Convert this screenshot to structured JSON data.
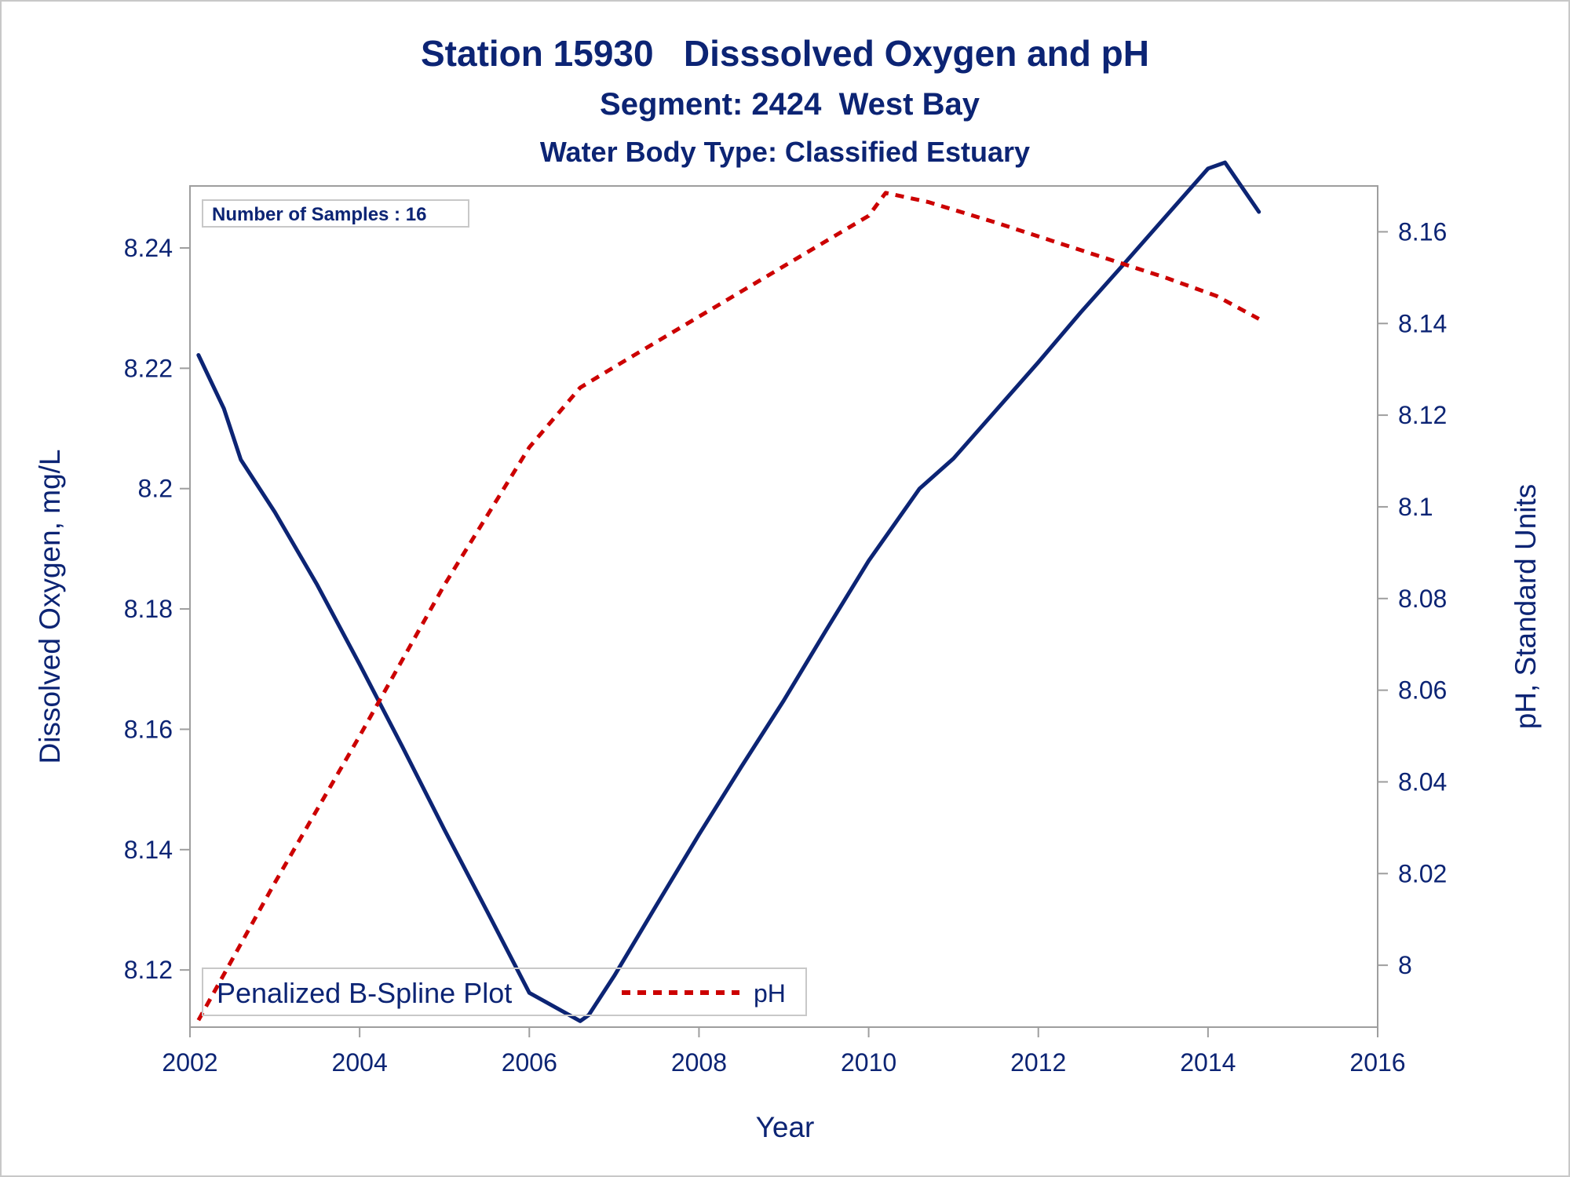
{
  "chart_data": {
    "type": "line",
    "title": "Station 15930   Disssolved Oxygen and pH",
    "subtitle": "Segment: 2424  West Bay",
    "subtitle2": "Water Body Type: Classified Estuary",
    "xlabel": "Year",
    "ylabel": "Dissolved Oxygen, mg/L",
    "y2label": "pH, Standard Units",
    "xlim": [
      2002,
      2016
    ],
    "ylim": [
      8.1105,
      8.2503
    ],
    "y2lim": [
      7.9865,
      8.17
    ],
    "x_ticks": [
      "2002",
      "2004",
      "2006",
      "2008",
      "2010",
      "2012",
      "2014",
      "2016"
    ],
    "x_tick_values": [
      2002,
      2004,
      2006,
      2008,
      2010,
      2012,
      2014,
      2016
    ],
    "y_ticks": [
      "8.12",
      "8.14",
      "8.16",
      "8.18",
      "8.2",
      "8.22",
      "8.24"
    ],
    "y_tick_values": [
      8.12,
      8.14,
      8.16,
      8.18,
      8.2,
      8.22,
      8.24
    ],
    "y2_ticks": [
      "8",
      "8.02",
      "8.04",
      "8.06",
      "8.08",
      "8.1",
      "8.12",
      "8.14",
      "8.16"
    ],
    "y2_tick_values": [
      8.0,
      8.02,
      8.04,
      8.06,
      8.08,
      8.1,
      8.12,
      8.14,
      8.16
    ],
    "annotation": "Number of Samples : 16",
    "legend": {
      "placement": "bottom-left",
      "title": "Penalized B-Spline Plot",
      "entries": [
        "pH"
      ]
    },
    "series": [
      {
        "axis": "left",
        "color": "#0c2474",
        "style": "solid",
        "x": [
          2002.1,
          2002.4,
          2002.6,
          2003.0,
          2003.5,
          2004.0,
          2004.5,
          2005.0,
          2005.5,
          2006.0,
          2006.6,
          2006.7,
          2007.0,
          2007.5,
          2008.0,
          2008.5,
          2009.0,
          2009.5,
          2010.0,
          2010.6,
          2011.0,
          2011.5,
          2012.0,
          2012.5,
          2013.0,
          2013.5,
          2014.0,
          2014.2,
          2014.6
        ],
        "y": [
          8.2222,
          8.2133,
          8.2048,
          8.1961,
          8.184,
          8.1708,
          8.1572,
          8.1433,
          8.1298,
          8.1162,
          8.1115,
          8.1125,
          8.119,
          8.1308,
          8.1425,
          8.1538,
          8.1648,
          8.1765,
          8.188,
          8.2,
          8.205,
          8.213,
          8.221,
          8.2293,
          8.2372,
          8.2452,
          8.2532,
          8.2542,
          8.246
        ]
      },
      {
        "name": "pH",
        "axis": "right",
        "color": "#cc0000",
        "style": "dashed",
        "x": [
          2002.1,
          2003.0,
          2004.0,
          2005.0,
          2006.0,
          2006.6,
          2007.0,
          2008.0,
          2009.0,
          2010.0,
          2010.2,
          2010.7,
          2011.5,
          2012.5,
          2013.5,
          2014.1,
          2014.6
        ],
        "y": [
          7.988,
          8.018,
          8.05,
          8.083,
          8.113,
          8.126,
          8.1305,
          8.1415,
          8.1525,
          8.1635,
          8.1685,
          8.1665,
          8.162,
          8.156,
          8.15,
          8.146,
          8.141
        ]
      }
    ]
  }
}
